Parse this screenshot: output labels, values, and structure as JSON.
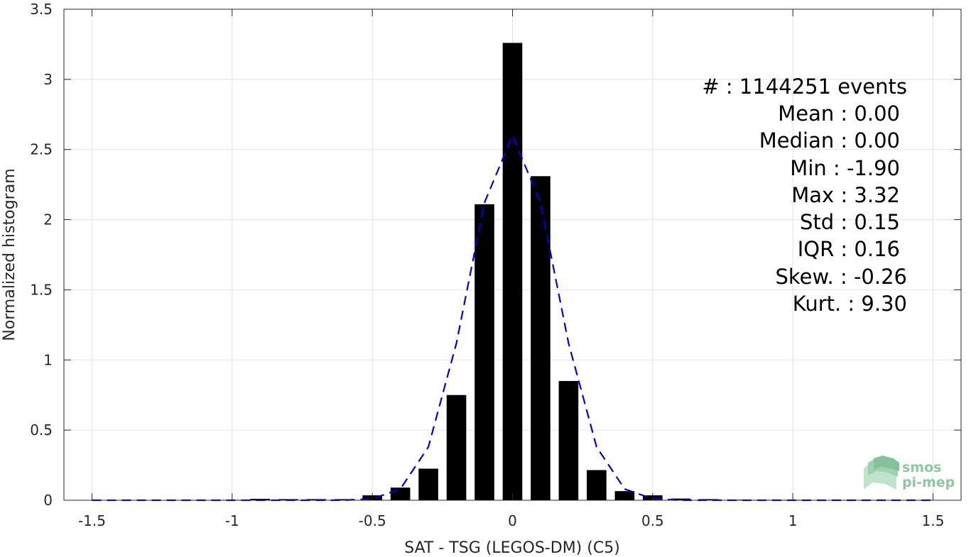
{
  "chart_data": {
    "type": "bar",
    "xlabel": "SAT - TSG (LEGOS-DM) (C5)",
    "ylabel": "Normalized histogram",
    "xlim": [
      -1.6,
      1.6
    ],
    "ylim": [
      0,
      3.5
    ],
    "grid": true,
    "bin_width": 0.1,
    "x_ticks": [
      -1.5,
      -1,
      -0.5,
      0,
      0.5,
      1,
      1.5
    ],
    "x_tick_labels": [
      "-1.5",
      "-1",
      "-0.5",
      "0",
      "0.5",
      "1",
      "1.5"
    ],
    "y_ticks": [
      0,
      0.5,
      1,
      1.5,
      2,
      2.5,
      3,
      3.5
    ],
    "y_tick_labels": [
      "0",
      "0.5",
      "1",
      "1.5",
      "2",
      "2.5",
      "3",
      "3.5"
    ],
    "bars": {
      "x": [
        -1.5,
        -1.4,
        -1.3,
        -1.2,
        -1.1,
        -1.0,
        -0.9,
        -0.8,
        -0.7,
        -0.6,
        -0.5,
        -0.4,
        -0.3,
        -0.2,
        -0.1,
        0.0,
        0.1,
        0.2,
        0.3,
        0.4,
        0.5,
        0.6,
        0.7,
        0.8,
        0.9,
        1.0,
        1.1,
        1.2,
        1.3,
        1.4,
        1.5
      ],
      "values": [
        0.002,
        0.002,
        0.002,
        0.002,
        0.002,
        0.003,
        0.01,
        0.008,
        0.008,
        0.008,
        0.035,
        0.09,
        0.225,
        0.75,
        2.11,
        3.26,
        2.31,
        0.85,
        0.215,
        0.065,
        0.035,
        0.012,
        0.008,
        0.004,
        0.003,
        0.003,
        0.002,
        0.002,
        0.002,
        0.002,
        0.002
      ],
      "color": "#000000"
    },
    "fit_curve": {
      "style": "dashed",
      "color": "#0000e6",
      "x": [
        -1.5,
        -1.4,
        -1.3,
        -1.2,
        -1.1,
        -1.0,
        -0.9,
        -0.8,
        -0.7,
        -0.6,
        -0.5,
        -0.4,
        -0.3,
        -0.2,
        -0.1,
        0.0,
        0.1,
        0.2,
        0.3,
        0.4,
        0.5,
        0.6,
        0.7,
        0.8,
        0.9,
        1.0,
        1.1,
        1.2,
        1.3,
        1.4,
        1.5
      ],
      "y": [
        0,
        0,
        0,
        0,
        0,
        0,
        0,
        0,
        0,
        0,
        0.01,
        0.08,
        0.38,
        1.12,
        2.12,
        2.6,
        2.12,
        1.12,
        0.38,
        0.08,
        0.01,
        0,
        0,
        0,
        0,
        0,
        0,
        0,
        0,
        0,
        0
      ]
    },
    "annotations": [
      "#  : 1144251 events",
      "Mean : 0.00",
      "Median : 0.00",
      "Min : -1.90",
      "Max : 3.32",
      "Std : 0.15",
      "IQR : 0.16",
      "Skew. : -0.26",
      "Kurt. : 9.30"
    ]
  },
  "logo": {
    "line1": "smos",
    "line2": "pi-mep",
    "color": "#8cc9a3"
  }
}
